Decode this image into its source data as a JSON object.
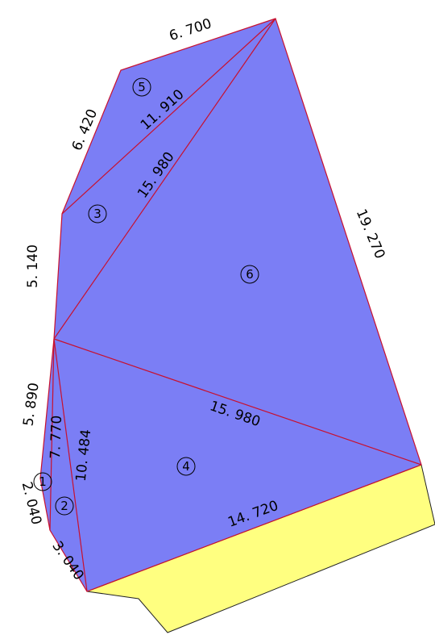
{
  "dimensions": {
    "top_edge": "6. 700",
    "upper_left_edge": "6. 420",
    "diag_5": "11. 910",
    "diag_3": "15. 980",
    "right_edge": "19. 270",
    "left_edge": "5. 140",
    "lower_diag": "15. 980",
    "left_lower_edge": "5. 890",
    "diag_1": "7. 770",
    "diag_2": "10. 484",
    "edge_1_bottom": "2. 040",
    "edge_2_bottom": "3. 040",
    "bottom_edge": "14. 720"
  },
  "regions": {
    "r1": "1",
    "r2": "2",
    "r3": "3",
    "r4": "4",
    "r5": "5",
    "r6": "6"
  },
  "colors": {
    "region_fill": "#7b7ef5",
    "edge_stroke": "#c8102e",
    "strip_fill": "#ffff80"
  }
}
